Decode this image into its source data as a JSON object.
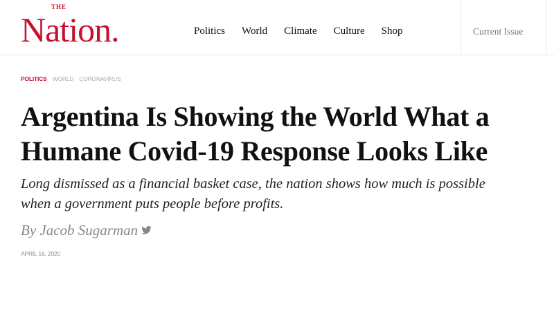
{
  "header": {
    "logo_small": "THE",
    "logo": "Nation.",
    "nav": [
      "Politics",
      "World",
      "Climate",
      "Culture",
      "Shop"
    ],
    "current_issue": "Current Issue"
  },
  "article": {
    "tags": [
      "POLITICS",
      "WORLD",
      "CORONAVIRUS"
    ],
    "title": "Argentina Is Showing the World What a Humane Covid-19 Response Looks Like",
    "dek": "Long dismissed as a financial basket case, the nation shows how much is possible when a government puts people before profits.",
    "byline": "By Jacob Sugarman",
    "date": "APRIL 16, 2020"
  },
  "colors": {
    "brand": "#c8102e"
  },
  "icons": {
    "author_social": "twitter-icon"
  }
}
